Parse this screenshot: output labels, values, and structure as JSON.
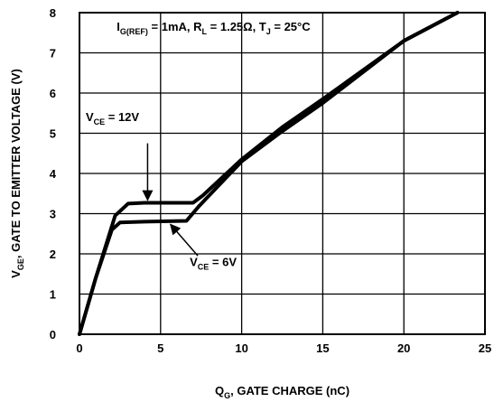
{
  "chart_data": {
    "type": "line",
    "xlabel": {
      "main": "Q",
      "sub": "G",
      "rest": ", GATE CHARGE (nC)"
    },
    "ylabel": {
      "main": "V",
      "sub": "GE",
      "rest": ", GATE TO EMITTER VOLTAGE (V)"
    },
    "xlim": [
      0,
      25
    ],
    "ylim": [
      0,
      8
    ],
    "x_ticks": [
      "0",
      "5",
      "10",
      "15",
      "20",
      "25"
    ],
    "y_ticks": [
      "0",
      "1",
      "2",
      "3",
      "4",
      "5",
      "6",
      "7",
      "8"
    ],
    "grid": true,
    "conditions": {
      "i_main": "I",
      "i_sub": "G(REF)",
      "i_rest": " = 1mA, R",
      "r_sub": "L",
      "r_rest": " = 1.25Ω,  T",
      "t_sub": "J",
      "t_rest": " = 25°C"
    },
    "series": [
      {
        "name": "V_CE = 12V",
        "label": {
          "main": "V",
          "sub": "CE",
          "rest": " = 12V"
        },
        "x": [
          0,
          1,
          2.2,
          3.0,
          4.0,
          7.0,
          7.6,
          10,
          12.5,
          15,
          20,
          23.3
        ],
        "y": [
          0,
          1.4,
          2.95,
          3.25,
          3.27,
          3.27,
          3.45,
          4.35,
          5.15,
          5.85,
          7.3,
          8.0
        ]
      },
      {
        "name": "V_CE = 6V",
        "label": {
          "main": "V",
          "sub": "CE",
          "rest": " = 6V"
        },
        "x": [
          0,
          1,
          2.0,
          2.5,
          4.0,
          6.6,
          7.4,
          10,
          12.5,
          15,
          20,
          23.3
        ],
        "y": [
          0,
          1.4,
          2.6,
          2.78,
          2.8,
          2.82,
          3.2,
          4.3,
          5.05,
          5.75,
          7.3,
          8.0
        ]
      }
    ],
    "annotations": [
      {
        "series": 0,
        "text_at": [
          1.5,
          5.3
        ],
        "arrow_to": [
          4.2,
          3.27
        ]
      },
      {
        "series": 1,
        "text_at": [
          6.8,
          1.7
        ],
        "arrow_to": [
          5.5,
          2.8
        ]
      }
    ]
  }
}
